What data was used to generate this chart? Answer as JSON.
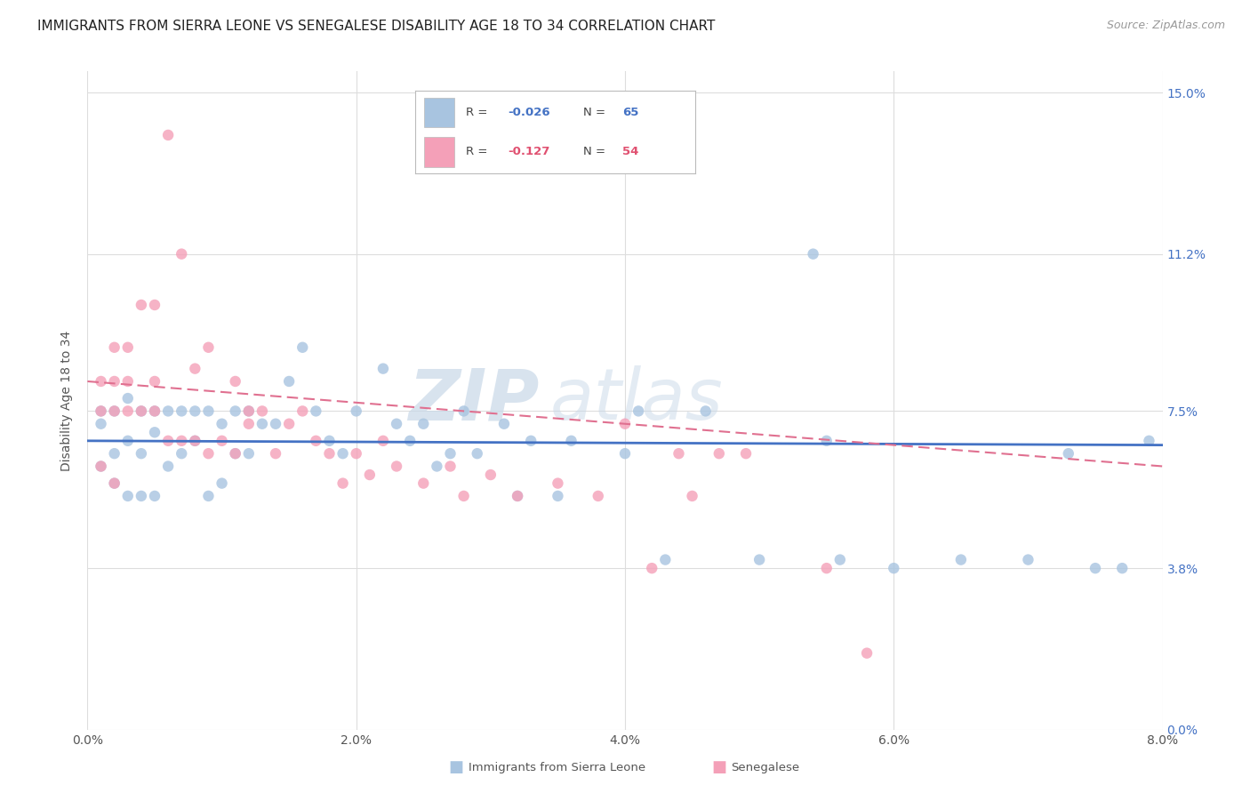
{
  "title": "IMMIGRANTS FROM SIERRA LEONE VS SENEGALESE DISABILITY AGE 18 TO 34 CORRELATION CHART",
  "source": "Source: ZipAtlas.com",
  "xlabel_ticks": [
    "0.0%",
    "2.0%",
    "4.0%",
    "6.0%",
    "8.0%"
  ],
  "ylabel_ticks": [
    "0.0%",
    "3.8%",
    "7.5%",
    "11.2%",
    "15.0%"
  ],
  "xlabel_ticks_val": [
    0.0,
    0.02,
    0.04,
    0.06,
    0.08
  ],
  "ylabel_ticks_val": [
    0.0,
    0.038,
    0.075,
    0.112,
    0.15
  ],
  "ylabel": "Disability Age 18 to 34",
  "watermark_zip": "ZIP",
  "watermark_atlas": "atlas",
  "sierra_leone_color": "#a8c4e0",
  "senegalese_color": "#f4a0b8",
  "sierra_leone_line_color": "#4472c4",
  "senegalese_line_color": "#e07090",
  "background_color": "#ffffff",
  "grid_color": "#dddddd",
  "title_fontsize": 11,
  "tick_fontsize": 10,
  "right_tick_color": "#4472c4",
  "sl_R": -0.026,
  "sl_N": 65,
  "sn_R": -0.127,
  "sn_N": 54,
  "sl_line_x0": 0.0,
  "sl_line_y0": 0.068,
  "sl_line_x1": 0.08,
  "sl_line_y1": 0.067,
  "sn_line_x0": 0.0,
  "sn_line_y0": 0.082,
  "sn_line_x1": 0.08,
  "sn_line_y1": 0.062,
  "sl_x": [
    0.001,
    0.001,
    0.001,
    0.002,
    0.002,
    0.002,
    0.003,
    0.003,
    0.003,
    0.004,
    0.004,
    0.004,
    0.005,
    0.005,
    0.005,
    0.006,
    0.006,
    0.007,
    0.007,
    0.008,
    0.008,
    0.009,
    0.009,
    0.01,
    0.01,
    0.011,
    0.011,
    0.012,
    0.012,
    0.013,
    0.014,
    0.015,
    0.016,
    0.017,
    0.018,
    0.019,
    0.02,
    0.022,
    0.023,
    0.024,
    0.025,
    0.026,
    0.027,
    0.028,
    0.029,
    0.031,
    0.032,
    0.033,
    0.035,
    0.036,
    0.04,
    0.041,
    0.043,
    0.046,
    0.05,
    0.054,
    0.055,
    0.056,
    0.06,
    0.065,
    0.07,
    0.073,
    0.075,
    0.077,
    0.079
  ],
  "sl_y": [
    0.062,
    0.072,
    0.075,
    0.058,
    0.065,
    0.075,
    0.055,
    0.068,
    0.078,
    0.055,
    0.065,
    0.075,
    0.055,
    0.07,
    0.075,
    0.062,
    0.075,
    0.065,
    0.075,
    0.068,
    0.075,
    0.055,
    0.075,
    0.058,
    0.072,
    0.065,
    0.075,
    0.065,
    0.075,
    0.072,
    0.072,
    0.082,
    0.09,
    0.075,
    0.068,
    0.065,
    0.075,
    0.085,
    0.072,
    0.068,
    0.072,
    0.062,
    0.065,
    0.075,
    0.065,
    0.072,
    0.055,
    0.068,
    0.055,
    0.068,
    0.065,
    0.075,
    0.04,
    0.075,
    0.04,
    0.112,
    0.068,
    0.04,
    0.038,
    0.04,
    0.04,
    0.065,
    0.038,
    0.038,
    0.068
  ],
  "sn_x": [
    0.001,
    0.001,
    0.001,
    0.002,
    0.002,
    0.002,
    0.002,
    0.003,
    0.003,
    0.003,
    0.004,
    0.004,
    0.005,
    0.005,
    0.005,
    0.006,
    0.006,
    0.007,
    0.007,
    0.008,
    0.008,
    0.009,
    0.009,
    0.01,
    0.011,
    0.011,
    0.012,
    0.012,
    0.013,
    0.014,
    0.015,
    0.016,
    0.017,
    0.018,
    0.019,
    0.02,
    0.021,
    0.022,
    0.023,
    0.025,
    0.027,
    0.028,
    0.03,
    0.032,
    0.035,
    0.038,
    0.04,
    0.042,
    0.044,
    0.045,
    0.047,
    0.049,
    0.055,
    0.058
  ],
  "sn_y": [
    0.062,
    0.075,
    0.082,
    0.058,
    0.075,
    0.082,
    0.09,
    0.075,
    0.082,
    0.09,
    0.075,
    0.1,
    0.075,
    0.082,
    0.1,
    0.068,
    0.14,
    0.068,
    0.112,
    0.068,
    0.085,
    0.065,
    0.09,
    0.068,
    0.065,
    0.082,
    0.072,
    0.075,
    0.075,
    0.065,
    0.072,
    0.075,
    0.068,
    0.065,
    0.058,
    0.065,
    0.06,
    0.068,
    0.062,
    0.058,
    0.062,
    0.055,
    0.06,
    0.055,
    0.058,
    0.055,
    0.072,
    0.038,
    0.065,
    0.055,
    0.065,
    0.065,
    0.038,
    0.018
  ]
}
